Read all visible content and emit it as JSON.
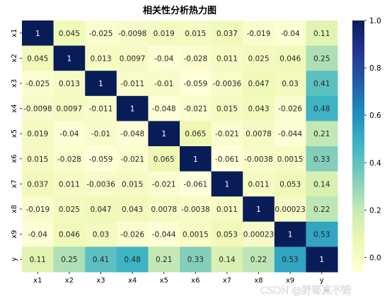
{
  "chart_data": {
    "type": "heatmap",
    "title": "相关性分析热力图",
    "rows": [
      "x1",
      "x2",
      "x3",
      "x4",
      "x5",
      "x6",
      "x7",
      "x8",
      "x9",
      "y"
    ],
    "cols": [
      "x1",
      "x2",
      "x3",
      "x4",
      "x5",
      "x6",
      "x7",
      "x8",
      "x9",
      "y"
    ],
    "values": [
      [
        1,
        0.045,
        -0.025,
        -0.0098,
        0.019,
        0.015,
        0.037,
        -0.019,
        -0.04,
        0.11
      ],
      [
        0.045,
        1,
        0.013,
        0.0097,
        -0.04,
        -0.028,
        0.011,
        0.025,
        0.046,
        0.25
      ],
      [
        -0.025,
        0.013,
        1,
        -0.011,
        -0.01,
        -0.059,
        -0.0036,
        0.047,
        0.03,
        0.41
      ],
      [
        -0.0098,
        0.0097,
        -0.011,
        1,
        -0.048,
        -0.021,
        0.015,
        0.043,
        -0.026,
        0.48
      ],
      [
        0.019,
        -0.04,
        -0.01,
        -0.048,
        1,
        0.065,
        -0.021,
        0.0078,
        -0.044,
        0.21
      ],
      [
        0.015,
        -0.028,
        -0.059,
        -0.021,
        0.065,
        1,
        -0.061,
        -0.0038,
        0.0015,
        0.33
      ],
      [
        0.037,
        0.011,
        -0.0036,
        0.015,
        -0.021,
        -0.061,
        1,
        0.011,
        0.053,
        0.14
      ],
      [
        -0.019,
        0.025,
        0.047,
        0.043,
        0.0078,
        -0.0038,
        0.011,
        1,
        0.00023,
        0.22
      ],
      [
        -0.04,
        0.046,
        0.03,
        -0.026,
        -0.044,
        0.0015,
        0.053,
        0.00023,
        1,
        0.53
      ],
      [
        0.11,
        0.25,
        0.41,
        0.48,
        0.21,
        0.33,
        0.14,
        0.22,
        0.53,
        1
      ]
    ],
    "colorbar": {
      "colormap": "YlGnBu",
      "range": [
        -0.061,
        1.0
      ],
      "ticks": [
        0.0,
        0.2,
        0.4,
        0.6,
        0.8,
        1.0
      ],
      "tick_labels": [
        "0.0",
        "0.2",
        "0.4",
        "0.6",
        "0.8",
        "1.0"
      ]
    },
    "annotations": [
      "CSDN @胖哥真不错"
    ]
  },
  "watermark": "CSDN @胖哥真不错"
}
